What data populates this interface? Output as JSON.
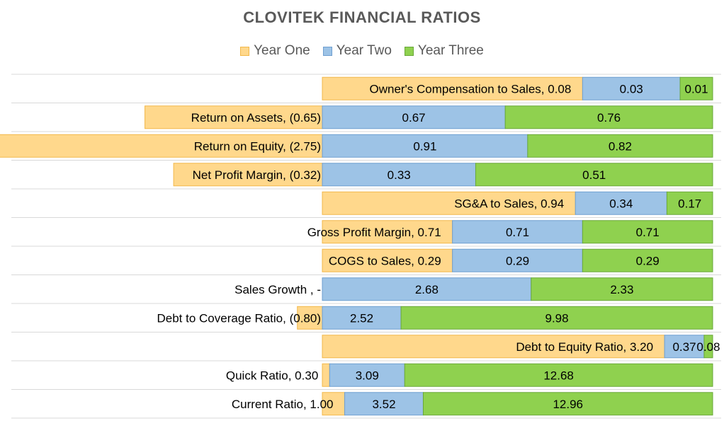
{
  "colors": {
    "year_one": "#ffd88c",
    "year_one_stroke": "#f2b84b",
    "year_two": "#9dc3e6",
    "year_two_stroke": "#6f9fd0",
    "year_three": "#8fd14f",
    "year_three_stroke": "#6aa83a",
    "gridline": "#d9d9d9",
    "title": "#595959"
  },
  "chart_data": {
    "type": "bar",
    "orientation": "horizontal-stacked",
    "title": "CLOVITEK FINANCIAL RATIOS",
    "legend_position": "top",
    "grid": true,
    "series": [
      {
        "name": "Year One",
        "label_texts": [
          "0.08",
          "(0.65)",
          "(2.75)",
          "(0.32)",
          "0.94",
          "0.71",
          "0.29",
          "-",
          "(0.80)",
          "3.20",
          "0.30",
          "1.00"
        ]
      },
      {
        "name": "Year Two",
        "label_texts": [
          "0.03",
          "0.67",
          "0.91",
          "0.33",
          "0.34",
          "0.71",
          "0.29",
          "2.68",
          "2.52",
          "0.37",
          "3.09",
          "3.52"
        ]
      },
      {
        "name": "Year Three",
        "label_texts": [
          "0.01",
          "0.76",
          "0.82",
          "0.51",
          "0.17",
          "0.71",
          "0.29",
          "2.33",
          "9.98",
          "0.08",
          "12.68",
          "12.96"
        ]
      }
    ],
    "rows": [
      {
        "category": "Owner's Compensation to Sales",
        "values": [
          0.08,
          0.03,
          0.01
        ]
      },
      {
        "category": "Return on Assets",
        "values": [
          -0.65,
          0.67,
          0.76
        ]
      },
      {
        "category": "Return on Equity",
        "values": [
          -2.75,
          0.91,
          0.82
        ]
      },
      {
        "category": "Net Profit Margin",
        "values": [
          -0.32,
          0.33,
          0.51
        ]
      },
      {
        "category": "SG&A to Sales",
        "values": [
          0.94,
          0.34,
          0.17
        ]
      },
      {
        "category": "Gross Profit Margin",
        "values": [
          0.71,
          0.71,
          0.71
        ]
      },
      {
        "category": "COGS to Sales",
        "values": [
          0.29,
          0.29,
          0.29
        ]
      },
      {
        "category": "Sales Growth",
        "values": [
          0,
          2.68,
          2.33
        ]
      },
      {
        "category": "Debt to Coverage Ratio",
        "values": [
          -0.8,
          2.52,
          9.98
        ]
      },
      {
        "category": "Debt to Equity Ratio",
        "values": [
          3.2,
          0.37,
          0.08
        ]
      },
      {
        "category": "Quick Ratio",
        "values": [
          0.3,
          3.09,
          12.68
        ]
      },
      {
        "category": "Current Ratio",
        "values": [
          1.0,
          3.52,
          12.96
        ]
      }
    ]
  }
}
